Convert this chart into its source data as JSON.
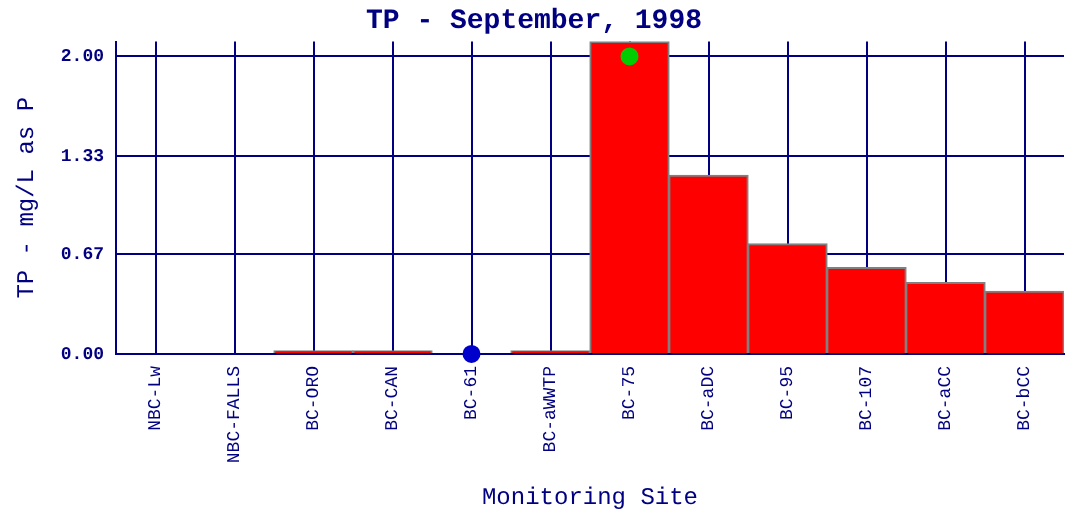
{
  "chart_data": {
    "type": "bar",
    "title": "TP - September, 1998",
    "xlabel": "Monitoring Site",
    "ylabel": "TP - mg/L as P",
    "categories": [
      "NBC-Lw",
      "NBC-FALLS",
      "BC-ORO",
      "BC-CAN",
      "BC-61",
      "BC-aWWTP",
      "BC-75",
      "BC-aDC",
      "BC-95",
      "BC-107",
      "BC-aCC",
      "BC-bCC"
    ],
    "series": [
      {
        "color": "#ff0000",
        "values": [
          0,
          0,
          0.02,
          0.02,
          null,
          0.02,
          2.1,
          1.2,
          0.74,
          0.58,
          0.48,
          0.42
        ]
      },
      {
        "type": "scatter",
        "color": "#0000cc",
        "x": [
          "BC-61"
        ],
        "values": [
          0
        ]
      },
      {
        "type": "scatter",
        "color": "#00cc00",
        "x": [
          "BC-75"
        ],
        "values": [
          2.0
        ]
      }
    ],
    "ylim": [
      0,
      2.1
    ],
    "yticks": [
      {
        "value": 0,
        "label": "0.00"
      },
      {
        "value": 0.67,
        "label": "0.67"
      },
      {
        "value": 1.33,
        "label": "1.33"
      },
      {
        "value": 2,
        "label": "2.00"
      }
    ],
    "grid": true,
    "marker": "circle"
  }
}
